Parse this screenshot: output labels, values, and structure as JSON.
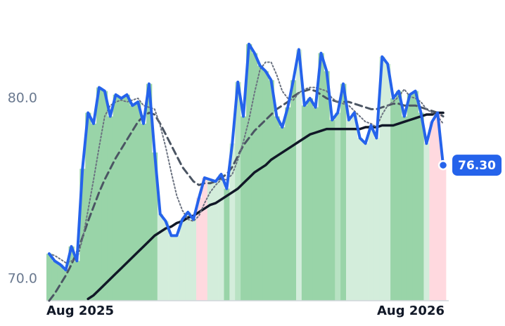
{
  "chart_data": {
    "type": "line",
    "categories": [
      "Aug 2025",
      null,
      null,
      null,
      null,
      null,
      null,
      null,
      null,
      null,
      null,
      null,
      null,
      null,
      null,
      null,
      null,
      null,
      null,
      null,
      null,
      null,
      null,
      null,
      null,
      null,
      null,
      null,
      null,
      null,
      null,
      null,
      null,
      null,
      null,
      null,
      null,
      null,
      null,
      null,
      null,
      null,
      null,
      null,
      null,
      null,
      null,
      null,
      null,
      null,
      null,
      null,
      null,
      null,
      null,
      null,
      null,
      null,
      null,
      null,
      null,
      null,
      null,
      null,
      null,
      null,
      null,
      null,
      null,
      null,
      null,
      "Aug 2026"
    ],
    "ylim": [
      68.8,
      84.7
    ],
    "yticks": [
      {
        "value": 70,
        "label": "70.0"
      },
      {
        "value": 80,
        "label": "80.0"
      }
    ],
    "grid": false,
    "bar_colors": [
      "#99d4a8",
      "#99d4a8",
      "#99d4a8",
      "#99d4a8",
      "#99d4a8",
      "#99d4a8",
      "#99d4a8",
      "#99d4a8",
      "#99d4a8",
      "#99d4a8",
      "#99d4a8",
      "#99d4a8",
      "#99d4a8",
      "#99d4a8",
      "#99d4a8",
      "#99d4a8",
      "#99d4a8",
      "#99d4a8",
      "#99d4a8",
      "#99d4a8",
      "#d3eddb",
      "#d3eddb",
      "#d3eddb",
      "#d3eddb",
      "#d3eddb",
      "#d3eddb",
      "#d3eddb",
      "#ffd9df",
      "#ffd9df",
      "#d3eddb",
      "#d3eddb",
      "#d3eddb",
      "#99d4a8",
      "#d3eddb",
      "#b8e2c3",
      "#99d4a8",
      "#99d4a8",
      "#99d4a8",
      "#99d4a8",
      "#99d4a8",
      "#99d4a8",
      "#99d4a8",
      "#99d4a8",
      "#99d4a8",
      "#99d4a8",
      "#d3eddb",
      "#99d4a8",
      "#99d4a8",
      "#99d4a8",
      "#99d4a8",
      "#99d4a8",
      "#99d4a8",
      "#b8e2c3",
      "#99d4a8",
      "#d3eddb",
      "#d3eddb",
      "#d3eddb",
      "#d3eddb",
      "#d3eddb",
      "#d3eddb",
      "#d3eddb",
      "#d3eddb",
      "#99d4a8",
      "#99d4a8",
      "#99d4a8",
      "#99d4a8",
      "#99d4a8",
      "#99d4a8",
      "#d3eddb",
      "#ffd9df",
      "#ffd9df",
      "#ffd9df"
    ],
    "series": [
      {
        "color": "#2563eb",
        "style": "solid",
        "width": 4,
        "values": [
          71.4,
          71.0,
          70.8,
          70.5,
          71.8,
          71.0,
          76.1,
          79.2,
          78.6,
          80.6,
          80.4,
          79.0,
          80.2,
          80.0,
          80.2,
          79.6,
          79.8,
          78.6,
          80.8,
          77.0,
          73.6,
          73.2,
          72.4,
          72.4,
          73.3,
          73.7,
          73.3,
          74.5,
          75.6,
          75.5,
          75.4,
          75.8,
          75.0,
          77.5,
          80.9,
          79.0,
          83.0,
          82.5,
          81.8,
          81.5,
          81.0,
          79.0,
          78.4,
          79.5,
          81.0,
          82.7,
          79.6,
          80.0,
          79.5,
          82.5,
          81.5,
          78.8,
          79.2,
          80.8,
          78.8,
          79.2,
          77.8,
          77.5,
          78.5,
          77.8,
          82.3,
          81.9,
          80.0,
          80.4,
          79.0,
          80.2,
          80.4,
          79.2,
          77.5,
          78.7,
          79.2,
          76.3
        ],
        "value_labels": [
          null,
          null,
          null,
          null,
          null,
          null,
          null,
          null,
          null,
          null,
          null,
          null,
          null,
          null,
          null,
          null,
          null,
          null,
          null,
          null,
          null,
          null,
          null,
          null,
          null,
          null,
          null,
          null,
          null,
          null,
          null,
          null,
          null,
          null,
          null,
          null,
          null,
          null,
          null,
          null,
          null,
          null,
          null,
          null,
          null,
          null,
          null,
          null,
          null,
          null,
          null,
          null,
          null,
          null,
          null,
          null,
          null,
          null,
          null,
          null,
          null,
          null,
          null,
          null,
          null,
          null,
          null,
          null,
          null,
          null,
          null,
          "76.30"
        ]
      },
      {
        "color": "#6b7280",
        "style": "dotted",
        "width": 2,
        "values": [
          71.4,
          71.3,
          71.1,
          70.9,
          71.0,
          71.1,
          72.2,
          73.8,
          75.5,
          77.3,
          79.0,
          79.6,
          79.8,
          79.9,
          79.8,
          79.9,
          80.0,
          79.6,
          79.5,
          79.4,
          78.5,
          77.3,
          75.9,
          74.6,
          73.8,
          73.3,
          73.2,
          73.5,
          74.2,
          74.8,
          75.2,
          75.5,
          75.5,
          75.8,
          76.6,
          77.6,
          78.8,
          80.3,
          81.6,
          82.0,
          82.0,
          81.3,
          80.4,
          80.0,
          79.9,
          80.3,
          80.5,
          80.6,
          80.6,
          80.5,
          80.4,
          80.0,
          79.8,
          79.7,
          79.6,
          79.3,
          79.0,
          78.7,
          78.6,
          78.4,
          79.1,
          79.6,
          79.8,
          80.1,
          80.5,
          80.1,
          80.0,
          79.8,
          79.4,
          79.2,
          79.0,
          78.6
        ]
      },
      {
        "color": "#4b5563",
        "style": "dashed",
        "width": 3,
        "values": [
          68.8,
          69.2,
          69.7,
          70.2,
          70.8,
          71.5,
          72.3,
          73.2,
          74.0,
          74.8,
          75.5,
          76.1,
          76.7,
          77.2,
          77.7,
          78.2,
          78.7,
          79.0,
          79.2,
          79.1,
          78.6,
          78.0,
          77.4,
          76.8,
          76.2,
          75.8,
          75.4,
          75.2,
          75.3,
          75.3,
          75.4,
          75.6,
          75.8,
          76.2,
          76.8,
          77.4,
          77.8,
          78.2,
          78.5,
          78.8,
          79.1,
          79.4,
          79.6,
          79.8,
          80.1,
          80.3,
          80.4,
          80.5,
          80.4,
          80.2,
          80.0,
          79.9,
          79.8,
          79.8,
          79.8,
          79.7,
          79.6,
          79.5,
          79.4,
          79.4,
          79.5,
          79.6,
          79.7,
          79.7,
          79.6,
          79.6,
          79.6,
          79.5,
          79.4,
          79.3,
          79.2,
          79.0
        ]
      },
      {
        "color": "#111827",
        "style": "solid",
        "width": 3.5,
        "values": [
          null,
          null,
          null,
          null,
          null,
          null,
          null,
          68.9,
          69.1,
          69.4,
          69.7,
          70.0,
          70.3,
          70.6,
          70.9,
          71.2,
          71.5,
          71.8,
          72.1,
          72.4,
          72.6,
          72.8,
          72.9,
          73.1,
          73.2,
          73.4,
          73.5,
          73.7,
          73.9,
          74.1,
          74.2,
          74.4,
          74.6,
          74.8,
          75.0,
          75.3,
          75.6,
          75.9,
          76.1,
          76.3,
          76.6,
          76.8,
          77.0,
          77.2,
          77.4,
          77.6,
          77.8,
          78.0,
          78.1,
          78.2,
          78.3,
          78.3,
          78.3,
          78.3,
          78.3,
          78.3,
          78.3,
          78.4,
          78.4,
          78.4,
          78.5,
          78.5,
          78.5,
          78.6,
          78.7,
          78.8,
          78.9,
          79.0,
          79.1,
          79.1,
          79.2,
          79.2
        ]
      }
    ]
  }
}
